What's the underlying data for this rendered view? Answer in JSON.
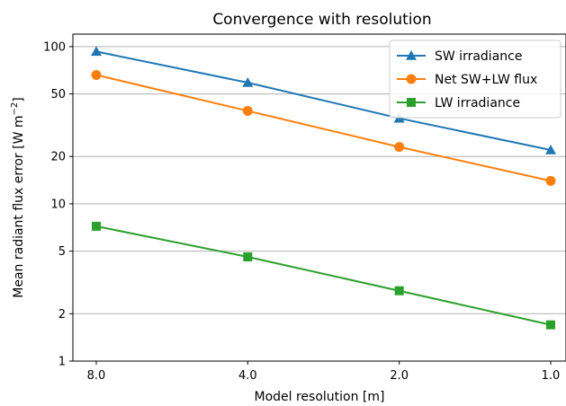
{
  "chart_data": {
    "type": "line",
    "title": "Convergence with resolution",
    "xlabel": "Model resolution [m]",
    "ylabel_main": "Mean radiant flux error [W m",
    "ylabel_sup": "−2",
    "ylabel_close": "]",
    "x": [
      8.0,
      4.0,
      2.0,
      1.0
    ],
    "x_tick_labels": [
      "8.0",
      "4.0",
      "2.0",
      "1.0"
    ],
    "x_scale": "log2-reversed",
    "y_scale": "log",
    "ylim": [
      1,
      120
    ],
    "y_ticks": [
      1,
      2,
      5,
      10,
      20,
      50,
      100
    ],
    "y_tick_labels": [
      "1",
      "2",
      "5",
      "10",
      "20",
      "50",
      "100"
    ],
    "grid": "horizontal-major",
    "legend_position": "top-right",
    "series": [
      {
        "name": "SW irradiance",
        "values": [
          93,
          59,
          35,
          22
        ],
        "color": "#1f77b4",
        "marker": "triangle"
      },
      {
        "name": "Net SW+LW flux",
        "values": [
          66,
          39,
          23,
          14
        ],
        "color": "#ff7f0e",
        "marker": "circle"
      },
      {
        "name": "LW irradiance",
        "values": [
          7.2,
          4.6,
          2.8,
          1.7
        ],
        "color": "#2ca02c",
        "marker": "square"
      }
    ]
  }
}
